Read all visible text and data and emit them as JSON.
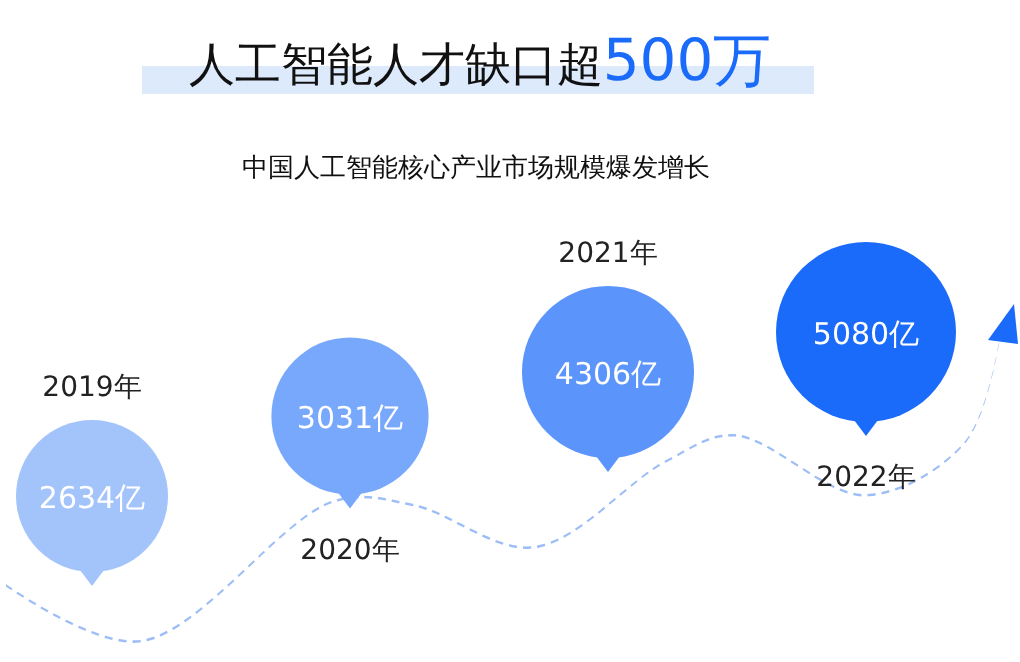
{
  "chart_data": {
    "type": "other",
    "title": "人工智能人才缺口超500万",
    "subtitle": "中国人工智能核心产业市场规模爆发增长",
    "categories": [
      "2019年",
      "2020年",
      "2021年",
      "2022年"
    ],
    "values": [
      2634,
      3031,
      4306,
      5080
    ],
    "value_labels": [
      "2634亿",
      "3031亿",
      "4306亿",
      "5080亿"
    ],
    "colors": [
      "#a3c3fb",
      "#78a8fb",
      "#5b95fb",
      "#1a6bfa"
    ]
  }
}
